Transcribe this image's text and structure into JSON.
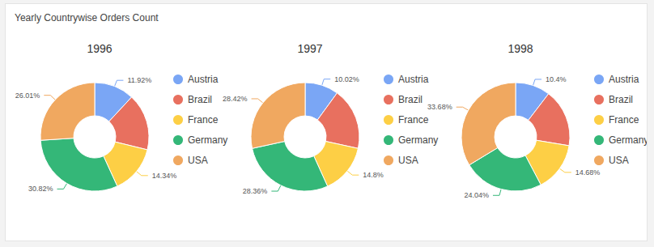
{
  "title": "Yearly Countrywise Orders Count",
  "chart_data": [
    {
      "type": "pie",
      "title": "1996",
      "categories": [
        "Austria",
        "Brazil",
        "France",
        "Germany",
        "USA"
      ],
      "values": [
        11.92,
        16.91,
        14.34,
        30.82,
        26.01
      ],
      "value_labels": [
        "11.92%",
        null,
        "14.34%",
        "30.82%",
        "26.01%"
      ],
      "colors": [
        "#7aa6f5",
        "#e8705f",
        "#fdcf45",
        "#34b778",
        "#f0a860"
      ],
      "data_labels": true,
      "legend": "right"
    },
    {
      "type": "pie",
      "title": "1997",
      "categories": [
        "Austria",
        "Brazil",
        "France",
        "Germany",
        "USA"
      ],
      "values": [
        10.02,
        18.4,
        14.8,
        28.36,
        28.42
      ],
      "value_labels": [
        "10.02%",
        null,
        "14.8%",
        "28.36%",
        "28.42%"
      ],
      "colors": [
        "#7aa6f5",
        "#e8705f",
        "#fdcf45",
        "#34b778",
        "#f0a860"
      ],
      "data_labels": true,
      "legend": "right"
    },
    {
      "type": "pie",
      "title": "1998",
      "categories": [
        "Austria",
        "Brazil",
        "France",
        "Germany",
        "USA"
      ],
      "values": [
        10.4,
        17.2,
        14.68,
        24.04,
        33.68
      ],
      "value_labels": [
        "10.4%",
        null,
        "14.68%",
        "24.04%",
        "33.68%"
      ],
      "colors": [
        "#7aa6f5",
        "#e8705f",
        "#fdcf45",
        "#34b778",
        "#f0a860"
      ],
      "data_labels": true,
      "legend": "right"
    }
  ]
}
